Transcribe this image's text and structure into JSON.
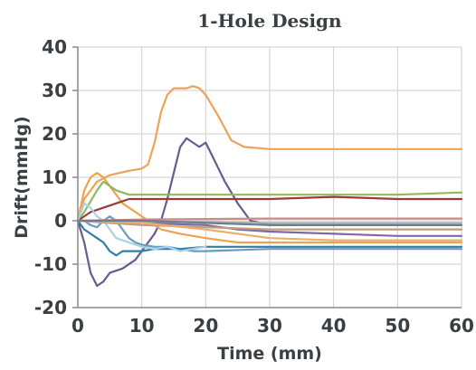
{
  "chart_data": {
    "type": "line",
    "title": "1-Hole Design",
    "xlabel": "Time (mm)",
    "ylabel": "Drift(mmHg)",
    "xlim": [
      0,
      60
    ],
    "ylim": [
      -20,
      40
    ],
    "xticks": [
      0,
      10,
      20,
      30,
      40,
      50,
      60
    ],
    "yticks": [
      -20,
      -10,
      0,
      10,
      20,
      30,
      40
    ],
    "grid": true,
    "series": [
      {
        "color": "#eea25a",
        "points": [
          [
            0,
            0
          ],
          [
            1,
            5
          ],
          [
            3,
            9
          ],
          [
            5,
            10.5
          ],
          [
            8,
            11.5
          ],
          [
            10,
            12
          ],
          [
            11,
            13
          ],
          [
            12,
            18
          ],
          [
            13,
            25
          ],
          [
            14,
            29
          ],
          [
            15,
            30.5
          ],
          [
            17,
            30.5
          ],
          [
            18,
            31
          ],
          [
            19,
            30.5
          ],
          [
            20,
            29
          ],
          [
            22,
            24
          ],
          [
            24,
            18.5
          ],
          [
            26,
            17
          ],
          [
            30,
            16.5
          ],
          [
            40,
            16.5
          ],
          [
            50,
            16.5
          ],
          [
            60,
            16.5
          ]
        ]
      },
      {
        "color": "#6c5a8e",
        "points": [
          [
            0,
            0
          ],
          [
            1,
            -5
          ],
          [
            2,
            -12
          ],
          [
            3,
            -15
          ],
          [
            4,
            -14
          ],
          [
            5,
            -12
          ],
          [
            7,
            -11
          ],
          [
            9,
            -9
          ],
          [
            11,
            -5
          ],
          [
            12,
            -3
          ],
          [
            13,
            0
          ],
          [
            14,
            5
          ],
          [
            15,
            11
          ],
          [
            16,
            17
          ],
          [
            17,
            19
          ],
          [
            18,
            18
          ],
          [
            19,
            17
          ],
          [
            20,
            18
          ],
          [
            21,
            15
          ],
          [
            23,
            9
          ],
          [
            25,
            4
          ],
          [
            27,
            0
          ],
          [
            30,
            -1
          ],
          [
            40,
            -1
          ],
          [
            50,
            -1
          ],
          [
            60,
            -1
          ]
        ]
      },
      {
        "color": "#f0a24e",
        "points": [
          [
            0,
            0
          ],
          [
            1,
            7
          ],
          [
            2,
            10
          ],
          [
            3,
            11
          ],
          [
            4,
            10
          ],
          [
            5,
            8
          ],
          [
            6,
            6
          ],
          [
            7,
            4
          ],
          [
            9,
            2
          ],
          [
            11,
            0
          ],
          [
            13,
            -2
          ],
          [
            16,
            -3
          ],
          [
            20,
            -4
          ],
          [
            25,
            -5
          ],
          [
            30,
            -5
          ],
          [
            40,
            -5
          ],
          [
            50,
            -5
          ],
          [
            60,
            -5
          ]
        ]
      },
      {
        "color": "#92b75f",
        "points": [
          [
            0,
            0
          ],
          [
            1,
            2
          ],
          [
            3,
            7
          ],
          [
            4,
            9
          ],
          [
            5,
            8
          ],
          [
            6,
            7
          ],
          [
            8,
            6
          ],
          [
            10,
            6
          ],
          [
            20,
            6
          ],
          [
            40,
            6
          ],
          [
            50,
            6
          ],
          [
            60,
            6.5
          ]
        ]
      },
      {
        "color": "#9b3b3b",
        "points": [
          [
            0,
            0
          ],
          [
            2,
            2
          ],
          [
            4,
            3
          ],
          [
            6,
            4
          ],
          [
            8,
            5
          ],
          [
            10,
            5
          ],
          [
            20,
            5
          ],
          [
            30,
            5
          ],
          [
            40,
            5.5
          ],
          [
            50,
            5
          ],
          [
            60,
            5
          ]
        ]
      },
      {
        "color": "#6a9cbd",
        "points": [
          [
            0,
            0
          ],
          [
            1,
            0
          ],
          [
            2,
            -1
          ],
          [
            3,
            -1.5
          ],
          [
            4,
            0
          ],
          [
            5,
            1
          ],
          [
            6,
            0
          ],
          [
            7,
            -2
          ],
          [
            8,
            -4
          ],
          [
            9,
            -5
          ],
          [
            10,
            -5.5
          ],
          [
            12,
            -6
          ],
          [
            14,
            -6
          ],
          [
            16,
            -6.5
          ],
          [
            18,
            -7
          ],
          [
            20,
            -7
          ],
          [
            30,
            -6.5
          ],
          [
            40,
            -6.5
          ],
          [
            50,
            -6.5
          ],
          [
            60,
            -6.5
          ]
        ]
      },
      {
        "color": "#2e7ea6",
        "points": [
          [
            0,
            0
          ],
          [
            1,
            -2
          ],
          [
            2,
            -3
          ],
          [
            3,
            -4
          ],
          [
            4,
            -5
          ],
          [
            5,
            -7
          ],
          [
            6,
            -8
          ],
          [
            7,
            -7
          ],
          [
            8,
            -7
          ],
          [
            10,
            -7
          ],
          [
            12,
            -6.5
          ],
          [
            16,
            -6.5
          ],
          [
            20,
            -6
          ],
          [
            30,
            -6
          ],
          [
            40,
            -6
          ],
          [
            50,
            -6
          ],
          [
            60,
            -6
          ]
        ]
      },
      {
        "color": "#a9d3e4",
        "points": [
          [
            0,
            0
          ],
          [
            1,
            4
          ],
          [
            2,
            3
          ],
          [
            3,
            1
          ],
          [
            4,
            0
          ],
          [
            5,
            -2
          ],
          [
            6,
            -4
          ],
          [
            8,
            -5
          ],
          [
            10,
            -6
          ],
          [
            12,
            -6.5
          ],
          [
            14,
            -6
          ],
          [
            16,
            -7
          ],
          [
            18,
            -6.5
          ],
          [
            20,
            -6
          ]
        ]
      },
      {
        "color": "#c98a8a",
        "points": [
          [
            0,
            0
          ],
          [
            10,
            0.3
          ],
          [
            20,
            0.4
          ],
          [
            30,
            0.5
          ],
          [
            40,
            0.5
          ],
          [
            50,
            0.5
          ],
          [
            60,
            0.5
          ]
        ]
      },
      {
        "color": "#7a6aa5",
        "points": [
          [
            0,
            0
          ],
          [
            10,
            -0.5
          ],
          [
            20,
            -1
          ],
          [
            25,
            -2
          ],
          [
            30,
            -2.5
          ],
          [
            40,
            -3
          ],
          [
            50,
            -3.5
          ],
          [
            60,
            -3.5
          ]
        ]
      },
      {
        "color": "#b0b0b0",
        "points": [
          [
            0,
            0
          ],
          [
            10,
            -0.2
          ],
          [
            20,
            -0.3
          ],
          [
            30,
            -0.5
          ],
          [
            40,
            -0.5
          ],
          [
            50,
            -0.5
          ],
          [
            60,
            -0.5
          ]
        ]
      },
      {
        "color": "#c39b7e",
        "points": [
          [
            0,
            0
          ],
          [
            10,
            -1
          ],
          [
            20,
            -1.5
          ],
          [
            30,
            -2
          ],
          [
            40,
            -2
          ],
          [
            50,
            -2
          ],
          [
            60,
            -2
          ]
        ]
      },
      {
        "color": "#e8b06e",
        "points": [
          [
            0,
            0
          ],
          [
            10,
            -0.5
          ],
          [
            20,
            -2
          ],
          [
            30,
            -4
          ],
          [
            40,
            -4.5
          ],
          [
            50,
            -4.5
          ],
          [
            60,
            -4.5
          ]
        ]
      },
      {
        "color": "#6a7e8e",
        "points": [
          [
            0,
            0
          ],
          [
            10,
            0
          ],
          [
            20,
            -0.5
          ],
          [
            30,
            -1
          ],
          [
            40,
            -1
          ],
          [
            50,
            -1
          ],
          [
            60,
            -1
          ]
        ]
      }
    ]
  }
}
